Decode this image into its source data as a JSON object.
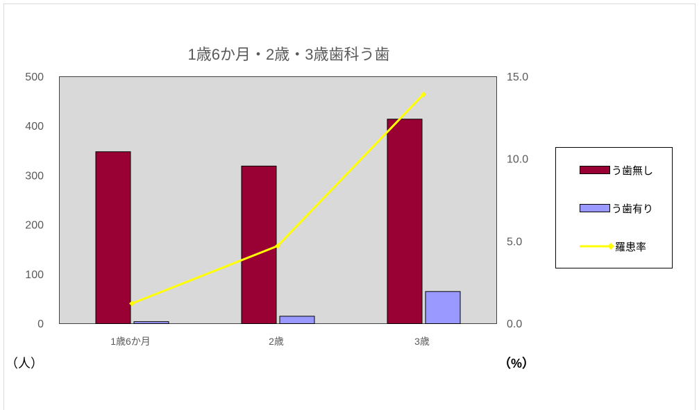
{
  "chart_data": {
    "type": "bar",
    "title": "1歳6か月・2歳・3歳歯科う歯",
    "categories": [
      "1歳6か月",
      "2歳",
      "3歳"
    ],
    "series": [
      {
        "name": "う歯無し",
        "type": "bar",
        "axis": "left",
        "values": [
          348,
          319,
          414
        ],
        "color": "#990033"
      },
      {
        "name": "う歯有り",
        "type": "bar",
        "axis": "left",
        "values": [
          4,
          15,
          65
        ],
        "color": "#9999FF"
      },
      {
        "name": "羅患率",
        "type": "line",
        "axis": "right",
        "values": [
          1.2,
          4.7,
          13.9
        ],
        "color": "#FFFF00",
        "marker": "diamond"
      }
    ],
    "y_left": {
      "label": "（人）",
      "ylim": [
        0,
        500
      ],
      "tick_labels": [
        "0",
        "100",
        "200",
        "300",
        "400",
        "500"
      ]
    },
    "y_right": {
      "label": "（%）",
      "ylim": [
        0,
        15
      ],
      "tick_labels": [
        "0.0",
        "5.0",
        "10.0",
        "15.0"
      ]
    },
    "legend": "right",
    "grid": false,
    "plot_background": "#D9D9D9"
  }
}
